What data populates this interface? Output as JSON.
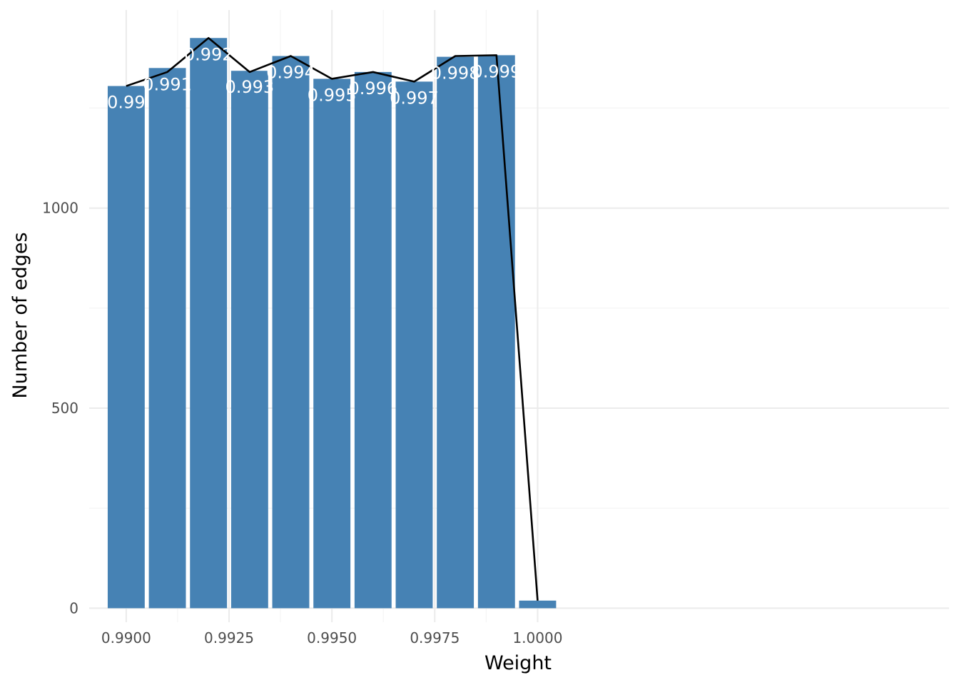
{
  "chart_data": {
    "type": "bar",
    "xlabel": "Weight",
    "ylabel": "Number of edges",
    "x": [
      0.99,
      0.991,
      0.992,
      0.993,
      0.994,
      0.995,
      0.996,
      0.997,
      0.998,
      0.999,
      1.0
    ],
    "values": [
      1305,
      1350,
      1425,
      1343,
      1380,
      1323,
      1340,
      1316,
      1378,
      1382,
      19
    ],
    "bar_labels": [
      "0.99",
      "0.991",
      "0.992",
      "0.993",
      "0.994",
      "0.995",
      "0.996",
      "0.997",
      "0.998",
      "0.999",
      ""
    ],
    "line": {
      "x": [
        0.99,
        0.991,
        0.992,
        0.993,
        0.994,
        0.995,
        0.996,
        0.997,
        0.998,
        0.999,
        1.0
      ],
      "y": [
        1305,
        1340,
        1425,
        1340,
        1380,
        1323,
        1340,
        1316,
        1380,
        1382,
        19
      ],
      "color": "#000000"
    },
    "xlim": [
      0.9891,
      1.01
    ],
    "ylim": [
      -35,
      1495
    ],
    "x_ticks": [
      0.99,
      0.9925,
      0.995,
      0.9975,
      1.0
    ],
    "x_tick_labels": [
      "0.9900",
      "0.9925",
      "0.9950",
      "0.9975",
      "1.0000"
    ],
    "y_ticks": [
      0,
      500,
      1000
    ],
    "y_tick_labels": [
      "0",
      "500",
      "1000"
    ],
    "bar_color": "#4682b4",
    "grid": true,
    "legend": "none"
  }
}
